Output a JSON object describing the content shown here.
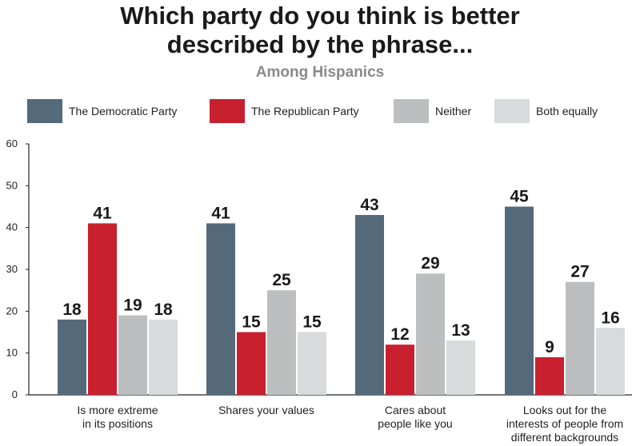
{
  "chart_data": {
    "type": "bar",
    "title": "Which party do you think is better described by the phrase...",
    "title_lines": [
      "Which party do you think is better",
      "described by the phrase..."
    ],
    "subtitle": "Among Hispanics",
    "categories": [
      [
        "Is more extreme",
        "in its positions"
      ],
      [
        "Shares your values"
      ],
      [
        "Cares about",
        "people like you"
      ],
      [
        "Looks out for the",
        "interests of people from",
        "different backgrounds"
      ]
    ],
    "series": [
      {
        "name": "The Democratic Party",
        "color": "#546a7b",
        "values": [
          18,
          41,
          43,
          45
        ]
      },
      {
        "name": "The Republican Party",
        "color": "#c8202f",
        "values": [
          41,
          15,
          12,
          9
        ]
      },
      {
        "name": "Neither",
        "color": "#bcbec0",
        "values": [
          19,
          25,
          29,
          27
        ]
      },
      {
        "name": "Both equally",
        "color": "#d9dadb",
        "values": [
          18,
          15,
          13,
          16
        ]
      }
    ],
    "ylim": [
      0,
      60
    ],
    "yticks": [
      0,
      10,
      20,
      30,
      40,
      50,
      60
    ],
    "legend": "top",
    "grid": false
  }
}
